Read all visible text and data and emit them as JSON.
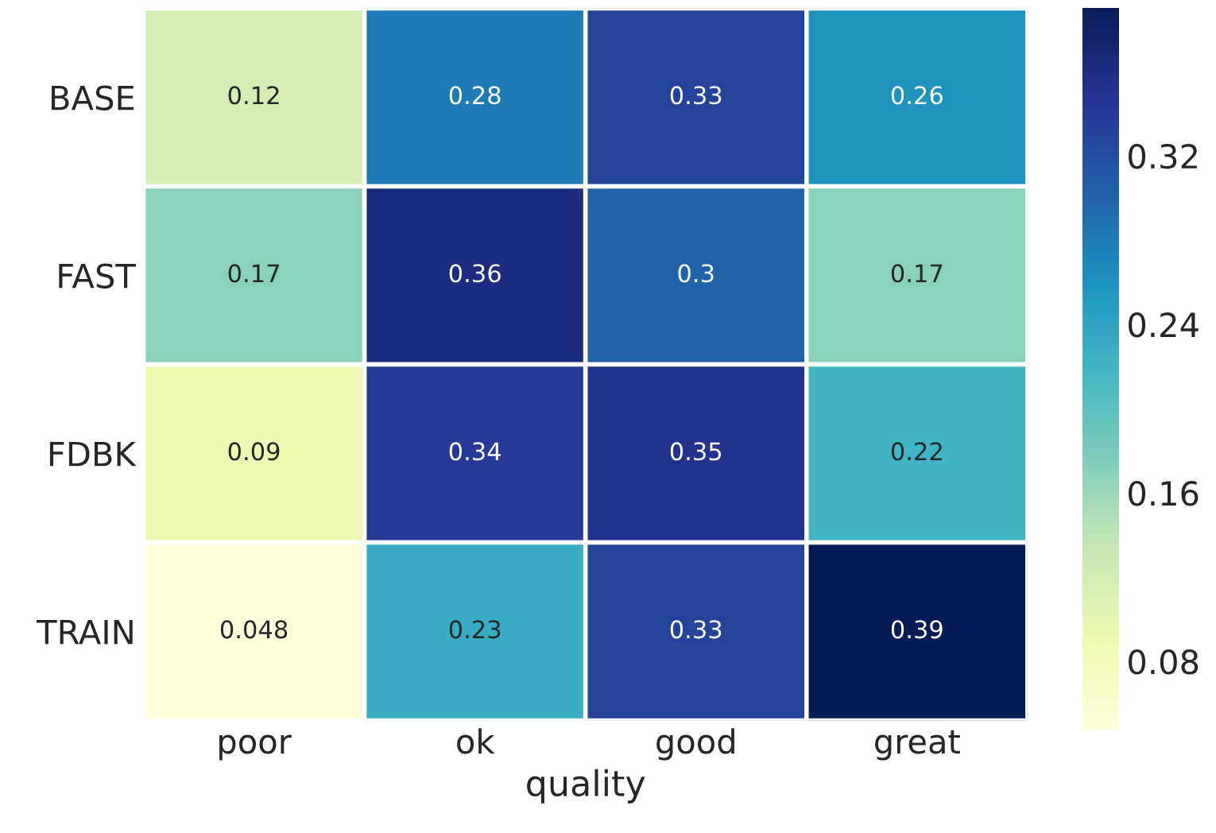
{
  "chart_data": {
    "type": "heatmap",
    "xlabel": "quality",
    "categories": [
      "poor",
      "ok",
      "good",
      "great"
    ],
    "y_categories": [
      "BASE",
      "FAST",
      "FDBK",
      "TRAIN"
    ],
    "cells": [
      [
        0.12,
        0.28,
        0.33,
        0.26
      ],
      [
        0.17,
        0.36,
        0.3,
        0.17
      ],
      [
        0.09,
        0.34,
        0.35,
        0.22
      ],
      [
        0.048,
        0.23,
        0.33,
        0.39
      ]
    ],
    "data_labels": true,
    "clim": [
      0.048,
      0.39
    ],
    "cticks": [
      0.08,
      0.16,
      0.24,
      0.32
    ]
  }
}
